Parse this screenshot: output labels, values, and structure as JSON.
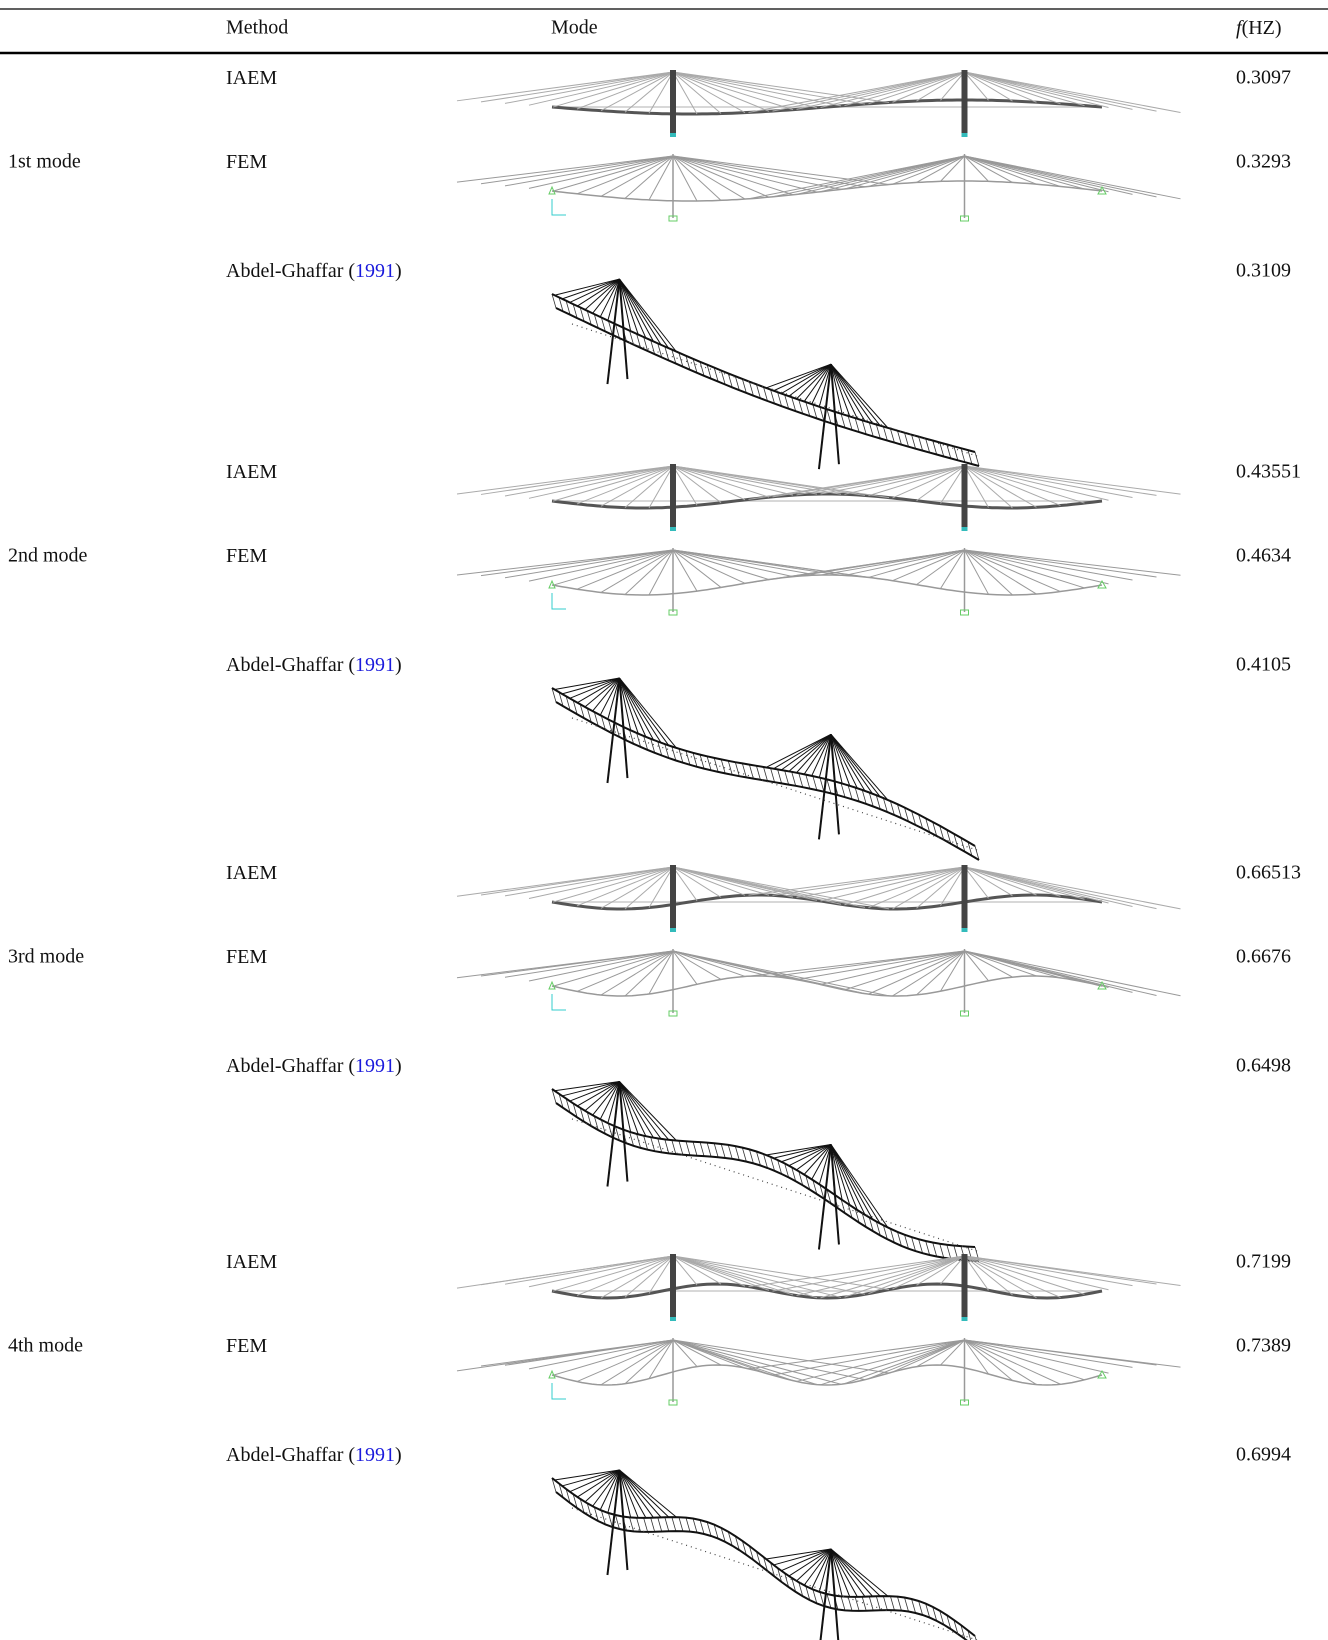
{
  "table": {
    "header": [
      "Method",
      "Mode",
      "f(HZ)"
    ],
    "groups": [
      {
        "label": "1st mode",
        "rows": [
          {
            "method": "IAEM",
            "freq": 0.3097
          },
          {
            "method": "FEM",
            "freq": 0.3293
          },
          {
            "method": "Abdel-Ghaffar (",
            "ref": "1991",
            "close": ")",
            "freq": 0.3109
          }
        ]
      },
      {
        "label": "2nd mode",
        "rows": [
          {
            "method": "IAEM",
            "freq": 0.43551
          },
          {
            "method": "FEM",
            "freq": 0.4634
          },
          {
            "method": "Abdel-Ghaffar (",
            "ref": "1991",
            "close": ")",
            "freq": 0.4105
          }
        ]
      },
      {
        "label": "3rd mode",
        "rows": [
          {
            "method": "IAEM",
            "freq": 0.66513
          },
          {
            "method": "FEM",
            "freq": 0.6676
          },
          {
            "method": "Abdel-Ghaffar (",
            "ref": "1991",
            "close": ")",
            "freq": 0.6498
          }
        ]
      },
      {
        "label": "4th mode",
        "rows": [
          {
            "method": "IAEM",
            "freq": 0.7199
          },
          {
            "method": "FEM",
            "freq": 0.7389
          },
          {
            "method": "Abdel-Ghaffar (",
            "ref": "1991",
            "close": ")",
            "freq": 0.6994
          }
        ]
      }
    ]
  }
}
